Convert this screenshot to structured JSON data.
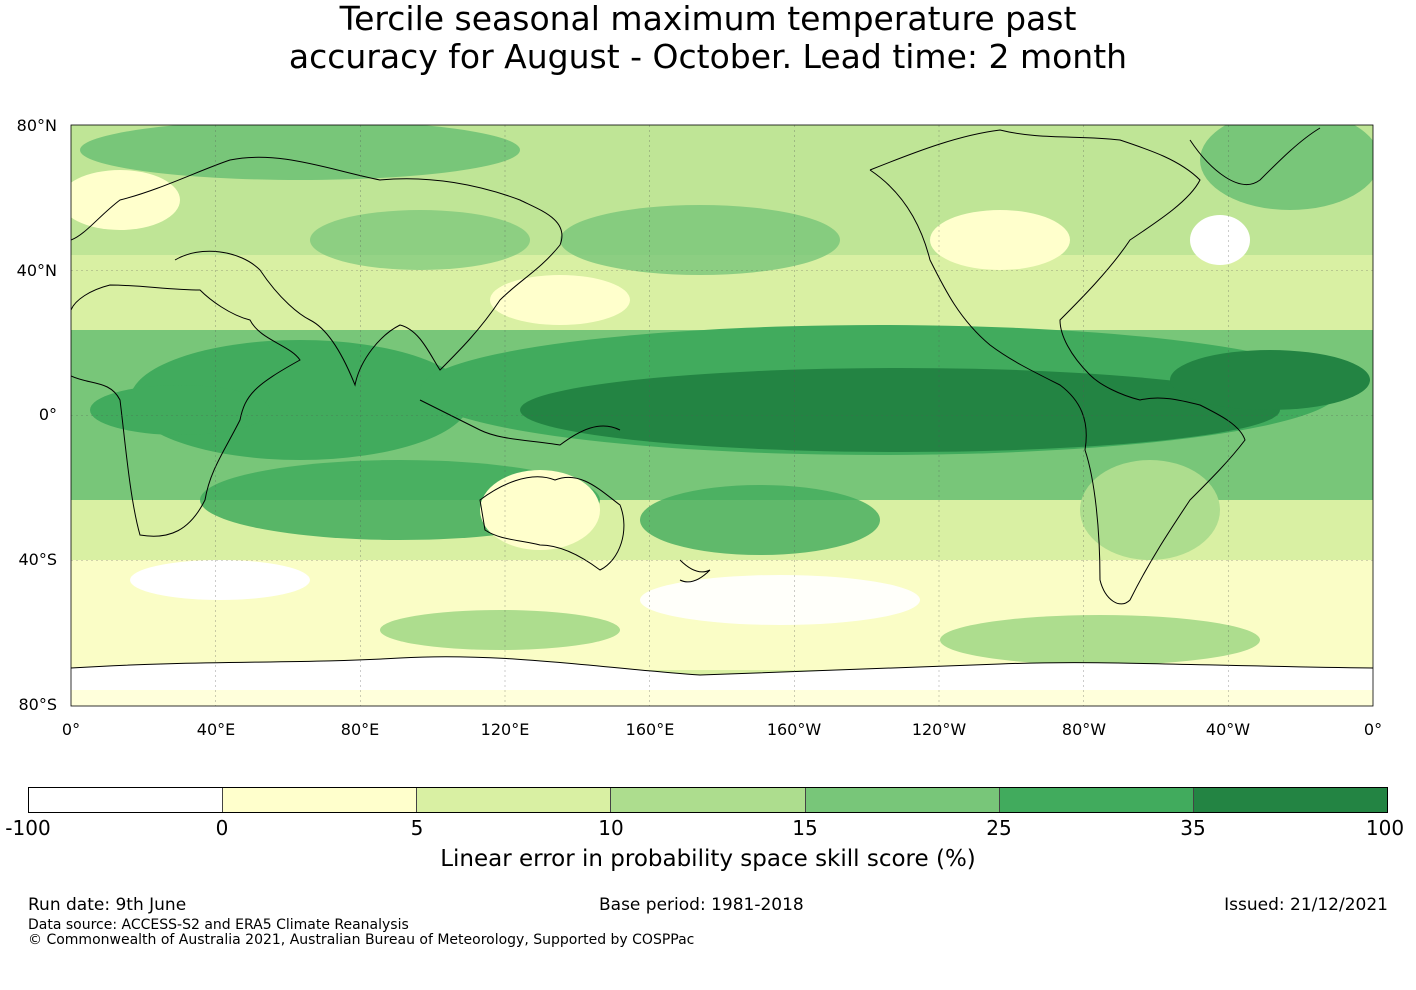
{
  "title": {
    "line1": "Tercile seasonal maximum temperature past",
    "line2": "accuracy for August - October. Lead time: 2 month"
  },
  "map": {
    "lat_labels": [
      "80°N",
      "40°N",
      "0°",
      "40°S",
      "80°S"
    ],
    "lon_labels": [
      "0°",
      "40°E",
      "80°E",
      "120°E",
      "160°E",
      "160°W",
      "120°W",
      "80°W",
      "40°W",
      "0°"
    ]
  },
  "colorbar": {
    "ticks": [
      "-100",
      "0",
      "5",
      "10",
      "15",
      "25",
      "35",
      "100"
    ],
    "colors": [
      "#ffffff",
      "#ffffcc",
      "#d9f0a3",
      "#addd8e",
      "#78c679",
      "#41ab5d",
      "#238443"
    ],
    "label": "Linear error in probability space skill score (%)"
  },
  "footer": {
    "run_date": "Run date: 9th June",
    "base_period": "Base period: 1981-2018",
    "issued": "Issued: 21/12/2021",
    "data_source": "Data source: ACCESS-S2 and ERA5 Climate Reanalysis",
    "copyright": "© Commonwealth of Australia 2021, Australian Bureau of Meteorology, Supported by COSPPac"
  }
}
